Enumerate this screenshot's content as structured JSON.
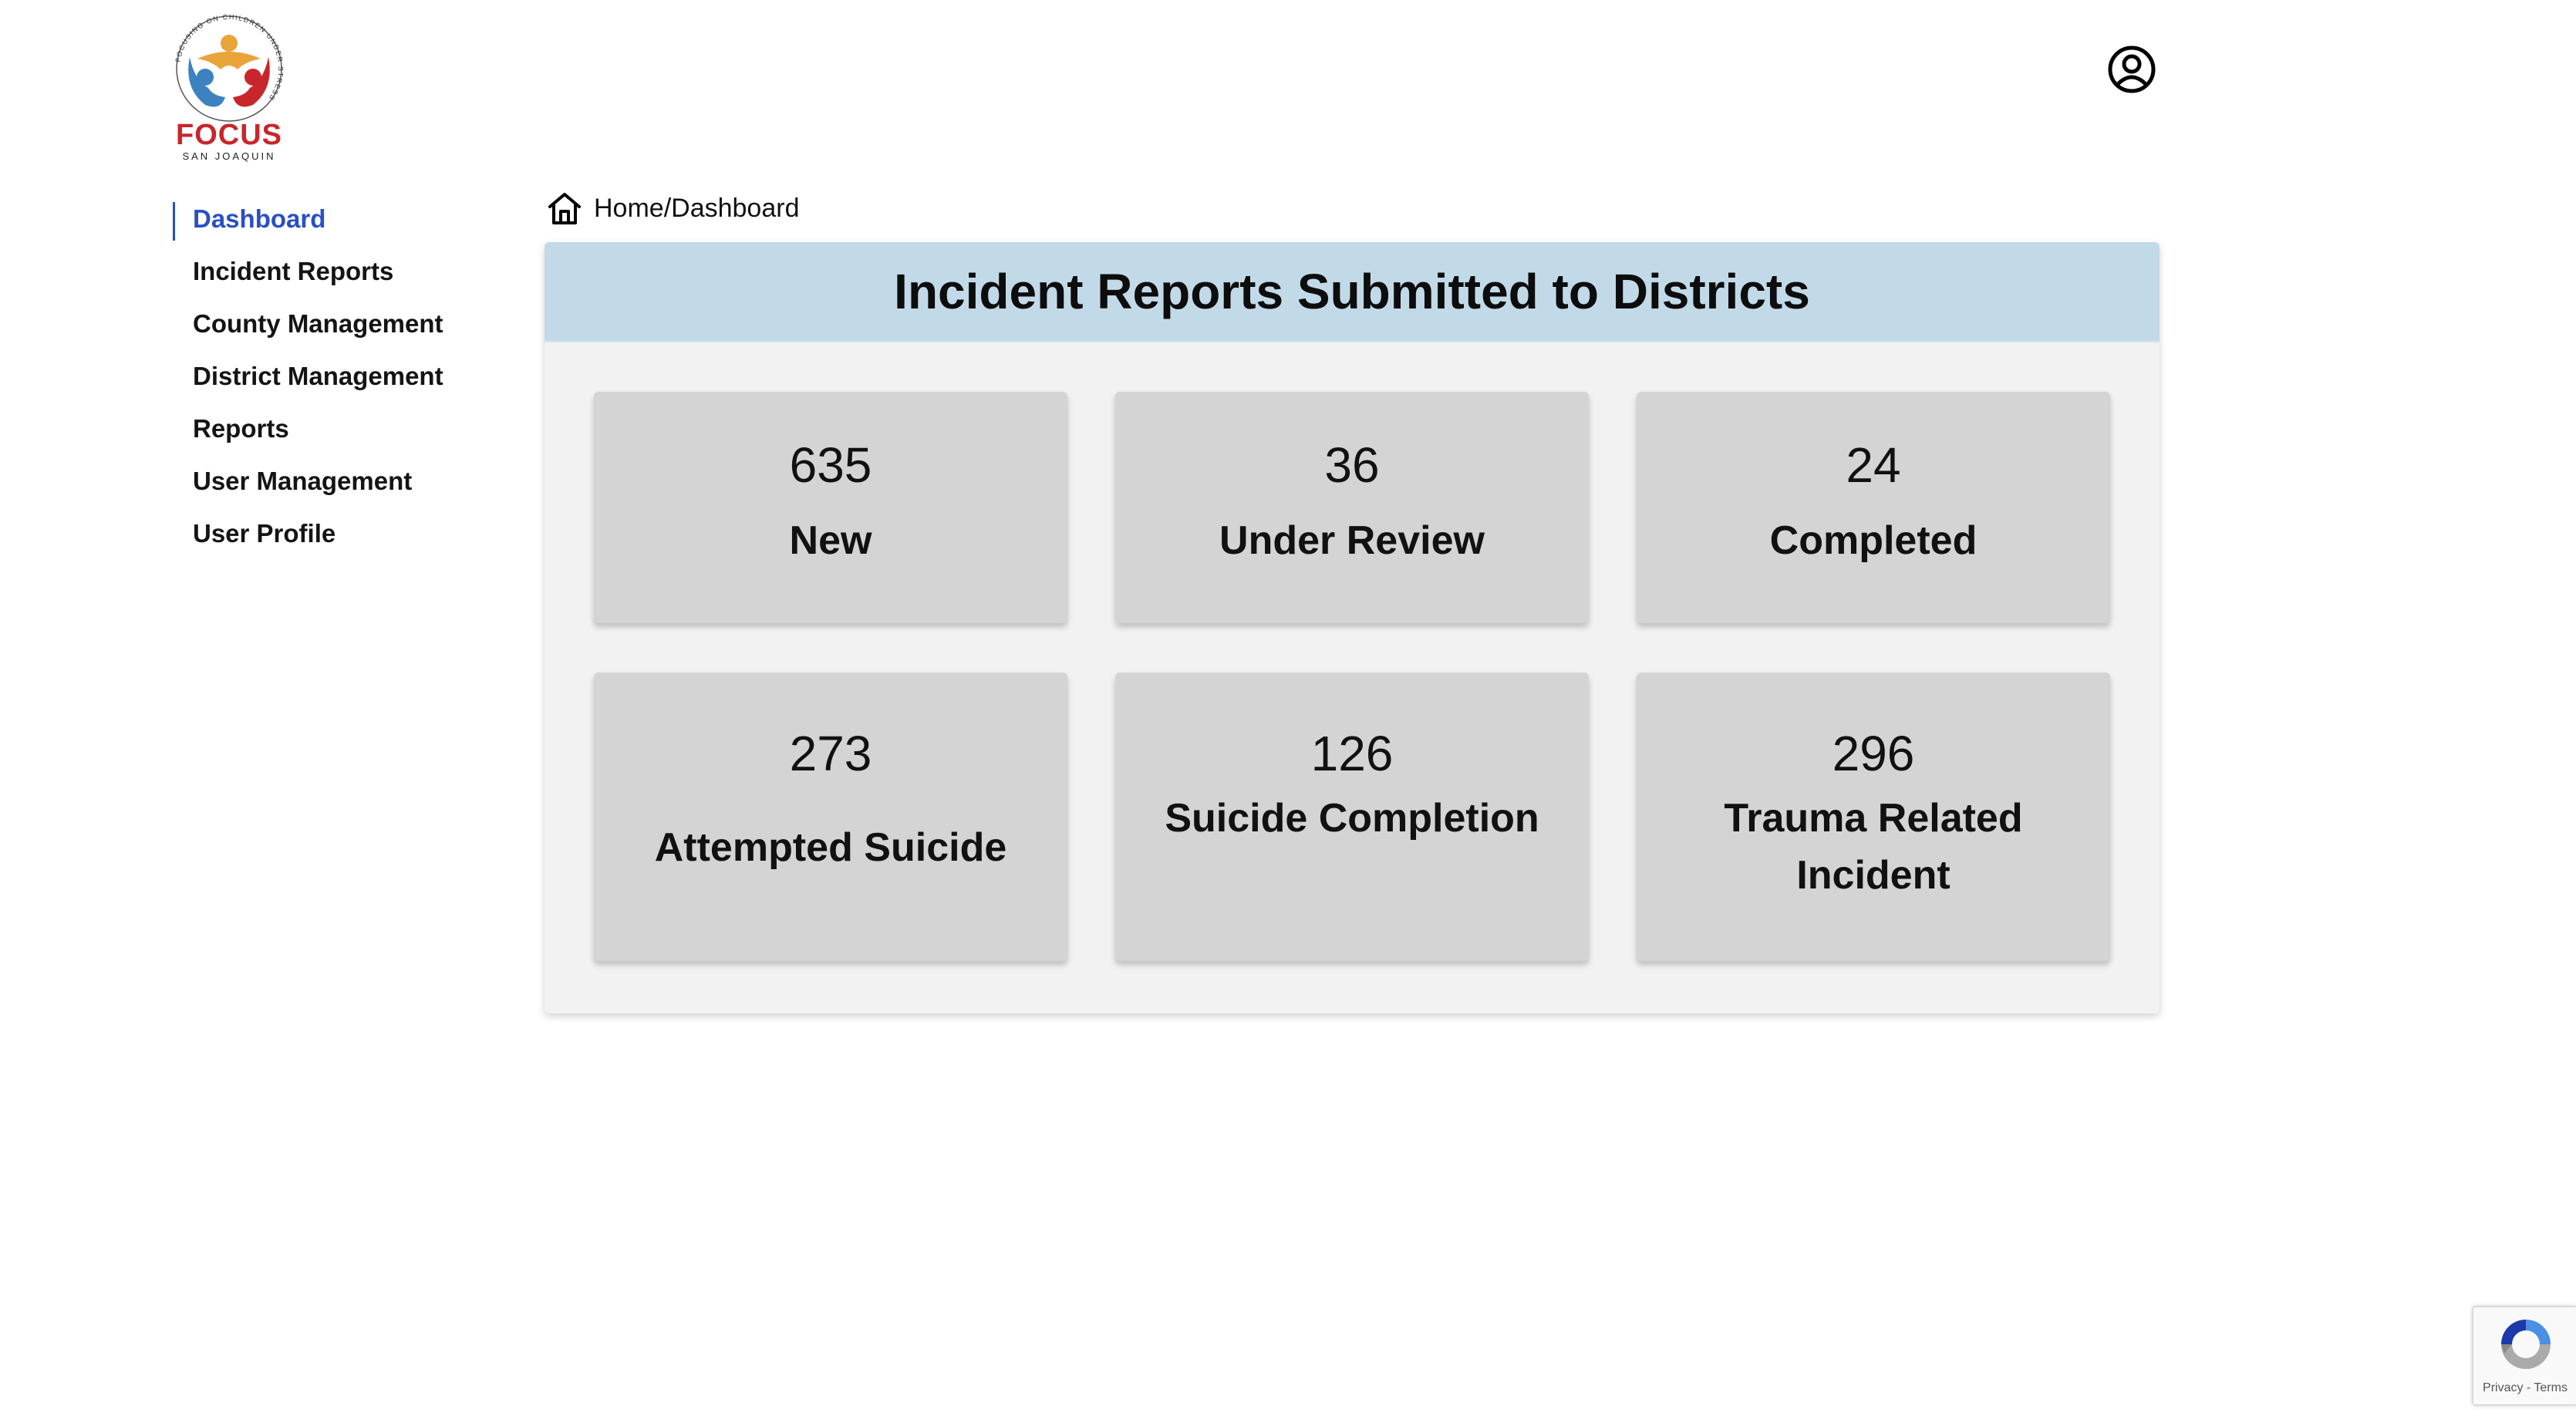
{
  "logo": {
    "name": "FOCUS",
    "subtitle": "SAN JOAQUIN",
    "ring_text": "FOCUSING ON CHILDREN UNDER STRESS",
    "colors": {
      "orange": "#e9a43a",
      "blue": "#3d82c0",
      "red": "#c8262c"
    }
  },
  "profile": {
    "icon": "user-circle-icon"
  },
  "sidebar": {
    "items": [
      {
        "label": "Dashboard",
        "active": true
      },
      {
        "label": "Incident Reports",
        "active": false
      },
      {
        "label": "County Management",
        "active": false
      },
      {
        "label": "District Management",
        "active": false
      },
      {
        "label": "Reports",
        "active": false
      },
      {
        "label": "User Management",
        "active": false
      },
      {
        "label": "User Profile",
        "active": false
      }
    ],
    "active_color": "#2a4fc4"
  },
  "breadcrumb": {
    "icon": "home-icon",
    "text": "Home/Dashboard"
  },
  "panel": {
    "title": "Incident Reports Submitted to Districts",
    "header_color": "#c2dae8",
    "cards": [
      {
        "value": "635",
        "label": "New"
      },
      {
        "value": "36",
        "label": "Under Review"
      },
      {
        "value": "24",
        "label": "Completed"
      },
      {
        "value": "273",
        "label": "Attempted Suicide"
      },
      {
        "value": "126",
        "label": "Suicide Completion"
      },
      {
        "value": "296",
        "label": "Trauma Related Incident"
      }
    ]
  },
  "recaptcha": {
    "privacy": "Privacy",
    "separator": " - ",
    "terms": "Terms"
  }
}
